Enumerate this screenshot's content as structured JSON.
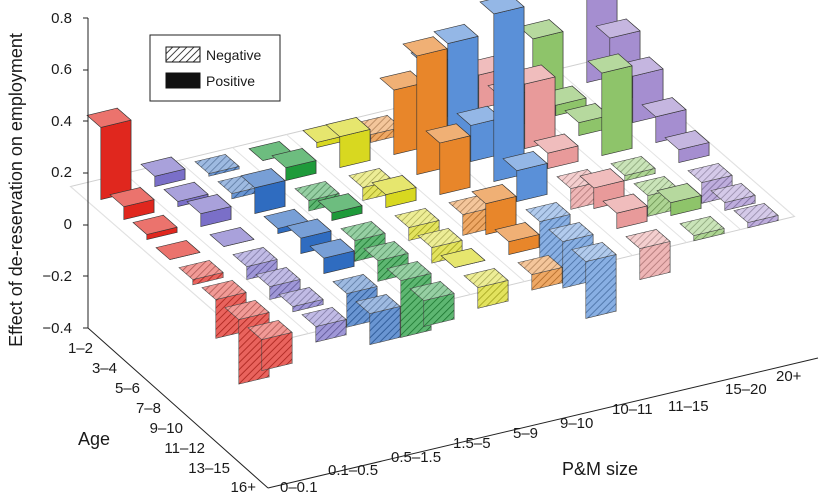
{
  "chart_data": {
    "type": "bar",
    "variant": "3d-bar",
    "title": "",
    "ylabel": "Effect of de-reservation on employment",
    "xlabel": "P&M size",
    "zlabel": "Age",
    "ylim": [
      -0.4,
      0.8
    ],
    "yticks": [
      "0.8",
      "0.6",
      "0.4",
      "0.2",
      "0",
      "−0.2",
      "−0.4"
    ],
    "size_categories": [
      "0–0.1",
      "0.1–0.5",
      "0.5–1.5",
      "1.5–5",
      "5–9",
      "9–10",
      "10–11",
      "11–15",
      "15–20",
      "20+"
    ],
    "age_categories": [
      "1–2",
      "3–4",
      "5–6",
      "7–8",
      "9–10",
      "11–12",
      "13–15",
      "16+"
    ],
    "legend": {
      "placement": "top-left",
      "entries": [
        {
          "label": "Negative",
          "pattern": "hatched"
        },
        {
          "label": "Positive",
          "pattern": "solid"
        }
      ]
    },
    "series_colors": [
      "#e0271e",
      "#7a6fc8",
      "#2f6cc0",
      "#1e9a3a",
      "#d8d820",
      "#e8862a",
      "#5a90d8",
      "#e89a9a",
      "#8ec46a",
      "#a58ed0"
    ],
    "values": [
      [
        0.28,
        0.04,
        -0.01,
        0.0,
        0.02,
        -0.03,
        0.22,
        0.13,
        0.22,
        0.45
      ],
      [
        0.05,
        0.02,
        -0.02,
        0.05,
        0.12,
        0.25,
        0.38,
        0.12,
        0.04,
        0.25
      ],
      [
        0.02,
        0.05,
        0.1,
        -0.04,
        -0.05,
        0.46,
        0.14,
        0.25,
        0.05,
        0.18
      ],
      [
        0.0,
        0.0,
        0.02,
        0.03,
        0.05,
        0.2,
        0.65,
        0.06,
        0.32,
        0.1
      ],
      [
        -0.02,
        -0.05,
        0.06,
        -0.08,
        -0.05,
        -0.08,
        0.12,
        -0.08,
        -0.02,
        0.05
      ],
      [
        -0.15,
        -0.05,
        0.06,
        -0.08,
        -0.06,
        0.12,
        -0.2,
        0.08,
        -0.08,
        -0.08
      ],
      [
        -0.25,
        -0.02,
        -0.13,
        -0.22,
        0.0,
        0.05,
        -0.18,
        0.06,
        0.05,
        -0.03
      ],
      [
        -0.12,
        -0.06,
        -0.12,
        -0.1,
        -0.08,
        -0.06,
        -0.22,
        -0.12,
        -0.02,
        -0.02
      ]
    ]
  }
}
